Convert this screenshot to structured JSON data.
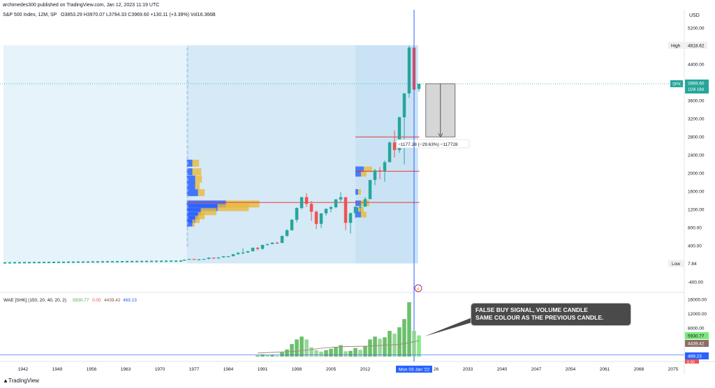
{
  "header": {
    "publisher": "archimedes300 published on TradingView.com, Jan 12, 2023 11:19 UTC",
    "symbol": "S&P 500 Index, 12M, SP",
    "ohlc": "O3853.29  H3970.07  L3794.33  C3969.60  +130.11 (+3.39%)  Vol16.366B",
    "indicator": "WAE [SHK] (150, 20, 40, 20, 2)",
    "indicator_v1": "5930.77",
    "indicator_v2": "0.00",
    "indicator_v3": "4439.42",
    "indicator_v4": "469.23"
  },
  "axis": {
    "currency": "USD",
    "price_ticks": [
      "5200.00",
      "4400.00",
      "3600.00",
      "3200.00",
      "2800.00",
      "2400.00",
      "2000.00",
      "1600.00",
      "1200.00",
      "800.00",
      "400.00",
      "-400.00"
    ],
    "high_label": "High",
    "high_value": "4818.62",
    "low_label": "Low",
    "low_value": "7.84",
    "spx_label": "SPX",
    "spx_value": "3969.60",
    "spx_countdown": "11M 18d",
    "ind_ticks": [
      "16000.00",
      "12000.00",
      "8000.00"
    ],
    "ind_val_green": "5930.77",
    "ind_val_brown": "4439.42",
    "ind_val_blue": "469.23",
    "ind_val_red": "0.00",
    "year_ticks": [
      "1942",
      "1949",
      "1956",
      "1963",
      "1970",
      "1977",
      "1984",
      "1991",
      "1998",
      "2005",
      "2012",
      "2033",
      "2040",
      "2047",
      "2054",
      "2061",
      "2068",
      "2075"
    ],
    "cursor_date": "Mon 03 Jan '22",
    "cursor_partial": "26"
  },
  "measure_label": "−1177.28 (−29.63%) −117728",
  "annotation": {
    "line1": "FALSE BUY SIGNAL, VOLUME CANDLE",
    "line2": "SAME COLOUR AS THE PREVIOUS CANDLE."
  },
  "footer": {
    "brand": "TradingView"
  },
  "colors": {
    "up": "#26a69a",
    "down": "#ef5350",
    "blue_line": "#2962ff",
    "profile_blue": "#2962ff",
    "profile_yellow": "#e8b93a",
    "red_level": "#e53935"
  },
  "chart_data": {
    "type": "candlestick",
    "title": "S&P 500 Index, 12M, SP",
    "ylim": [
      -600,
      5600
    ],
    "candles": [
      {
        "year": 1975,
        "o": 68,
        "h": 95,
        "l": 62,
        "c": 90
      },
      {
        "year": 1976,
        "o": 90,
        "h": 108,
        "l": 88,
        "c": 107
      },
      {
        "year": 1977,
        "o": 107,
        "h": 108,
        "l": 90,
        "c": 95
      },
      {
        "year": 1978,
        "o": 95,
        "h": 107,
        "l": 87,
        "c": 96
      },
      {
        "year": 1979,
        "o": 96,
        "h": 111,
        "l": 96,
        "c": 108
      },
      {
        "year": 1980,
        "o": 108,
        "h": 140,
        "l": 98,
        "c": 136
      },
      {
        "year": 1981,
        "o": 136,
        "h": 138,
        "l": 112,
        "c": 122
      },
      {
        "year": 1982,
        "o": 122,
        "h": 143,
        "l": 102,
        "c": 140
      },
      {
        "year": 1983,
        "o": 140,
        "h": 172,
        "l": 138,
        "c": 164
      },
      {
        "year": 1984,
        "o": 164,
        "h": 170,
        "l": 147,
        "c": 167
      },
      {
        "year": 1985,
        "o": 167,
        "h": 212,
        "l": 163,
        "c": 211
      },
      {
        "year": 1986,
        "o": 211,
        "h": 254,
        "l": 203,
        "c": 242
      },
      {
        "year": 1987,
        "o": 242,
        "h": 337,
        "l": 216,
        "c": 247
      },
      {
        "year": 1988,
        "o": 247,
        "h": 284,
        "l": 242,
        "c": 277
      },
      {
        "year": 1989,
        "o": 277,
        "h": 360,
        "l": 275,
        "c": 353
      },
      {
        "year": 1990,
        "o": 353,
        "h": 369,
        "l": 295,
        "c": 330
      },
      {
        "year": 1991,
        "o": 330,
        "h": 418,
        "l": 311,
        "c": 417
      },
      {
        "year": 1992,
        "o": 417,
        "h": 442,
        "l": 394,
        "c": 435
      },
      {
        "year": 1993,
        "o": 435,
        "h": 471,
        "l": 429,
        "c": 466
      },
      {
        "year": 1994,
        "o": 466,
        "h": 482,
        "l": 435,
        "c": 459
      },
      {
        "year": 1995,
        "o": 459,
        "h": 622,
        "l": 457,
        "c": 615
      },
      {
        "year": 1996,
        "o": 615,
        "h": 761,
        "l": 597,
        "c": 740
      },
      {
        "year": 1997,
        "o": 740,
        "h": 986,
        "l": 733,
        "c": 970
      },
      {
        "year": 1998,
        "o": 970,
        "h": 1244,
        "l": 912,
        "c": 1229
      },
      {
        "year": 1999,
        "o": 1229,
        "h": 1473,
        "l": 1205,
        "c": 1469
      },
      {
        "year": 2000,
        "o": 1469,
        "h": 1553,
        "l": 1254,
        "c": 1320
      },
      {
        "year": 2001,
        "o": 1320,
        "h": 1383,
        "l": 944,
        "c": 1148
      },
      {
        "year": 2002,
        "o": 1148,
        "h": 1176,
        "l": 768,
        "c": 880
      },
      {
        "year": 2003,
        "o": 880,
        "h": 1112,
        "l": 788,
        "c": 1112
      },
      {
        "year": 2004,
        "o": 1112,
        "h": 1217,
        "l": 1060,
        "c": 1212
      },
      {
        "year": 2005,
        "o": 1212,
        "h": 1275,
        "l": 1137,
        "c": 1248
      },
      {
        "year": 2006,
        "o": 1248,
        "h": 1431,
        "l": 1219,
        "c": 1418
      },
      {
        "year": 2007,
        "o": 1418,
        "h": 1576,
        "l": 1363,
        "c": 1468
      },
      {
        "year": 2008,
        "o": 1468,
        "h": 1471,
        "l": 741,
        "c": 903
      },
      {
        "year": 2009,
        "o": 903,
        "h": 1130,
        "l": 667,
        "c": 1115
      },
      {
        "year": 2010,
        "o": 1115,
        "h": 1262,
        "l": 1011,
        "c": 1258
      },
      {
        "year": 2011,
        "o": 1258,
        "h": 1371,
        "l": 1075,
        "c": 1258
      },
      {
        "year": 2012,
        "o": 1258,
        "h": 1475,
        "l": 1258,
        "c": 1426
      },
      {
        "year": 2013,
        "o": 1426,
        "h": 1849,
        "l": 1426,
        "c": 1848
      },
      {
        "year": 2014,
        "o": 1848,
        "h": 2094,
        "l": 1737,
        "c": 2059
      },
      {
        "year": 2015,
        "o": 2059,
        "h": 2135,
        "l": 1867,
        "c": 2044
      },
      {
        "year": 2016,
        "o": 2044,
        "h": 2278,
        "l": 1810,
        "c": 2239
      },
      {
        "year": 2017,
        "o": 2239,
        "h": 2695,
        "l": 2238,
        "c": 2674
      },
      {
        "year": 2018,
        "o": 2674,
        "h": 2941,
        "l": 2347,
        "c": 2507
      },
      {
        "year": 2019,
        "o": 2507,
        "h": 3247,
        "l": 2444,
        "c": 3231
      },
      {
        "year": 2020,
        "o": 3231,
        "h": 3760,
        "l": 2192,
        "c": 3756
      },
      {
        "year": 2021,
        "o": 3756,
        "h": 4808,
        "l": 3662,
        "c": 4766
      },
      {
        "year": 2022,
        "o": 4766,
        "h": 4818,
        "l": 3492,
        "c": 3839
      },
      {
        "year": 2023,
        "o": 3853,
        "h": 3970,
        "l": 3794,
        "c": 3969
      }
    ],
    "levels": [
      2797,
      2040,
      1352
    ],
    "wae": [
      {
        "year": 1990,
        "v": 300
      },
      {
        "year": 1991,
        "v": 600
      },
      {
        "year": 1992,
        "v": 400
      },
      {
        "year": 1993,
        "v": 500
      },
      {
        "year": 1994,
        "v": 300
      },
      {
        "year": 1995,
        "v": 1200
      },
      {
        "year": 1996,
        "v": 2000
      },
      {
        "year": 1997,
        "v": 3500
      },
      {
        "year": 1998,
        "v": 4800
      },
      {
        "year": 1999,
        "v": 5600
      },
      {
        "year": 2000,
        "v": 4800
      },
      {
        "year": 2001,
        "v": 2600
      },
      {
        "year": 2002,
        "v": 1800
      },
      {
        "year": 2003,
        "v": 1400
      },
      {
        "year": 2004,
        "v": 1800
      },
      {
        "year": 2005,
        "v": 2200
      },
      {
        "year": 2006,
        "v": 2700
      },
      {
        "year": 2007,
        "v": 3200
      },
      {
        "year": 2008,
        "v": 1500
      },
      {
        "year": 2009,
        "v": 1600
      },
      {
        "year": 2010,
        "v": 2400
      },
      {
        "year": 2011,
        "v": 1900
      },
      {
        "year": 2012,
        "v": 3000
      },
      {
        "year": 2013,
        "v": 4800
      },
      {
        "year": 2014,
        "v": 5600
      },
      {
        "year": 2015,
        "v": 5000
      },
      {
        "year": 2016,
        "v": 5400
      },
      {
        "year": 2017,
        "v": 7200
      },
      {
        "year": 2018,
        "v": 6400
      },
      {
        "year": 2019,
        "v": 8200
      },
      {
        "year": 2020,
        "v": 10500
      },
      {
        "year": 2021,
        "v": 15200
      },
      {
        "year": 2022,
        "v": 7200
      },
      {
        "year": 2023,
        "v": 5930
      }
    ],
    "wae_line": [
      {
        "year": 1990,
        "v": 1000
      },
      {
        "year": 1998,
        "v": 1500
      },
      {
        "year": 2004,
        "v": 2500
      },
      {
        "year": 2008,
        "v": 2800
      },
      {
        "year": 2012,
        "v": 2900
      },
      {
        "year": 2016,
        "v": 3200
      },
      {
        "year": 2019,
        "v": 3400
      },
      {
        "year": 2021,
        "v": 3900
      },
      {
        "year": 2023,
        "v": 4439
      }
    ]
  }
}
